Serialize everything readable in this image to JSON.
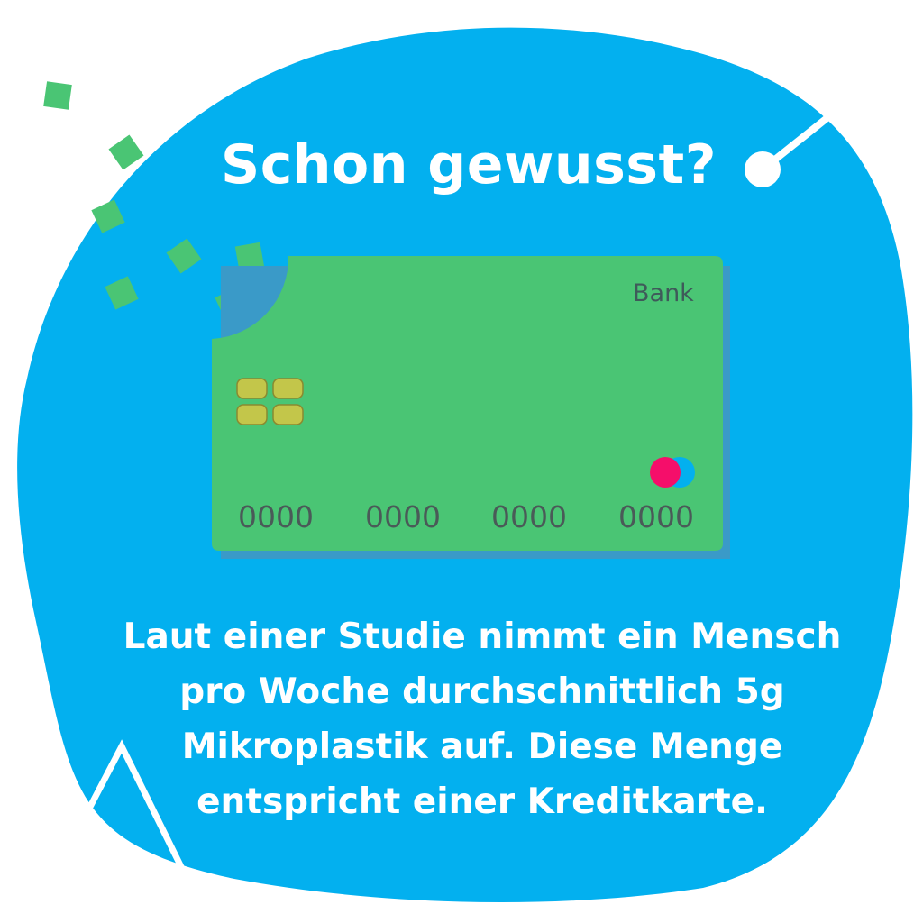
{
  "title": "Schon gewusst?",
  "card": {
    "bank_label": "Bank",
    "number_groups": [
      "0000",
      "0000",
      "0000",
      "0000"
    ]
  },
  "body_text": "Laut einer Studie nimmt ein Mensch pro Woche durchschnittlich 5g Mikroplastik auf. Diese Menge entspricht einer Kreditkarte.",
  "colors": {
    "blob": "#03b0ef",
    "card": "#4ac574",
    "card_shadow": "#3a9ac8",
    "chip": "#c3c64a",
    "logo_red": "#f50e6a",
    "logo_blue": "#03b0ef"
  }
}
